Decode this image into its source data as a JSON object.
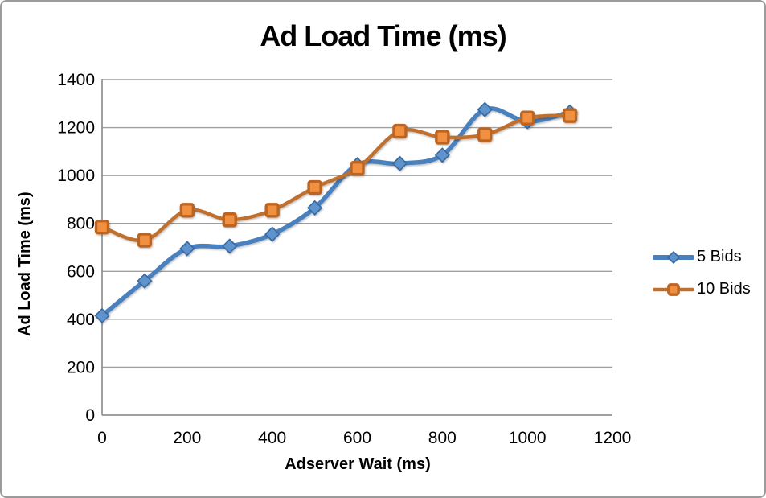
{
  "chart_data": {
    "type": "line",
    "title": "Ad Load Time (ms)",
    "xlabel": "Adserver Wait (ms)",
    "ylabel": "Ad Load Time (ms)",
    "x": [
      0,
      100,
      200,
      300,
      400,
      500,
      600,
      700,
      800,
      900,
      1000,
      1100
    ],
    "series": [
      {
        "name": "5 Bids",
        "marker": "diamond",
        "line_color": "#4A80BE",
        "marker_fill": "#5E93CE",
        "marker_stroke": "#38699F",
        "values": [
          415,
          560,
          695,
          705,
          755,
          865,
          1045,
          1050,
          1085,
          1275,
          1225,
          1265
        ]
      },
      {
        "name": "10 Bids",
        "marker": "square",
        "line_color": "#C0702E",
        "marker_fill": "#F0903F",
        "marker_stroke": "#BC6524",
        "values": [
          785,
          730,
          855,
          815,
          855,
          950,
          1030,
          1185,
          1160,
          1170,
          1240,
          1250
        ]
      }
    ],
    "xlim": [
      0,
      1200
    ],
    "ylim": [
      0,
      1400
    ],
    "x_ticks": [
      0,
      200,
      400,
      600,
      800,
      1000,
      1200
    ],
    "y_ticks": [
      0,
      200,
      400,
      600,
      800,
      1000,
      1200,
      1400
    ],
    "grid": "horizontal",
    "smooth": true,
    "legend_position": "right",
    "colors": {
      "gridline": "#A0A0A0",
      "axis": "#808080",
      "tick_text": "#000000",
      "frame_border": "#9B9B9B",
      "background": "#FFFFFF"
    }
  }
}
